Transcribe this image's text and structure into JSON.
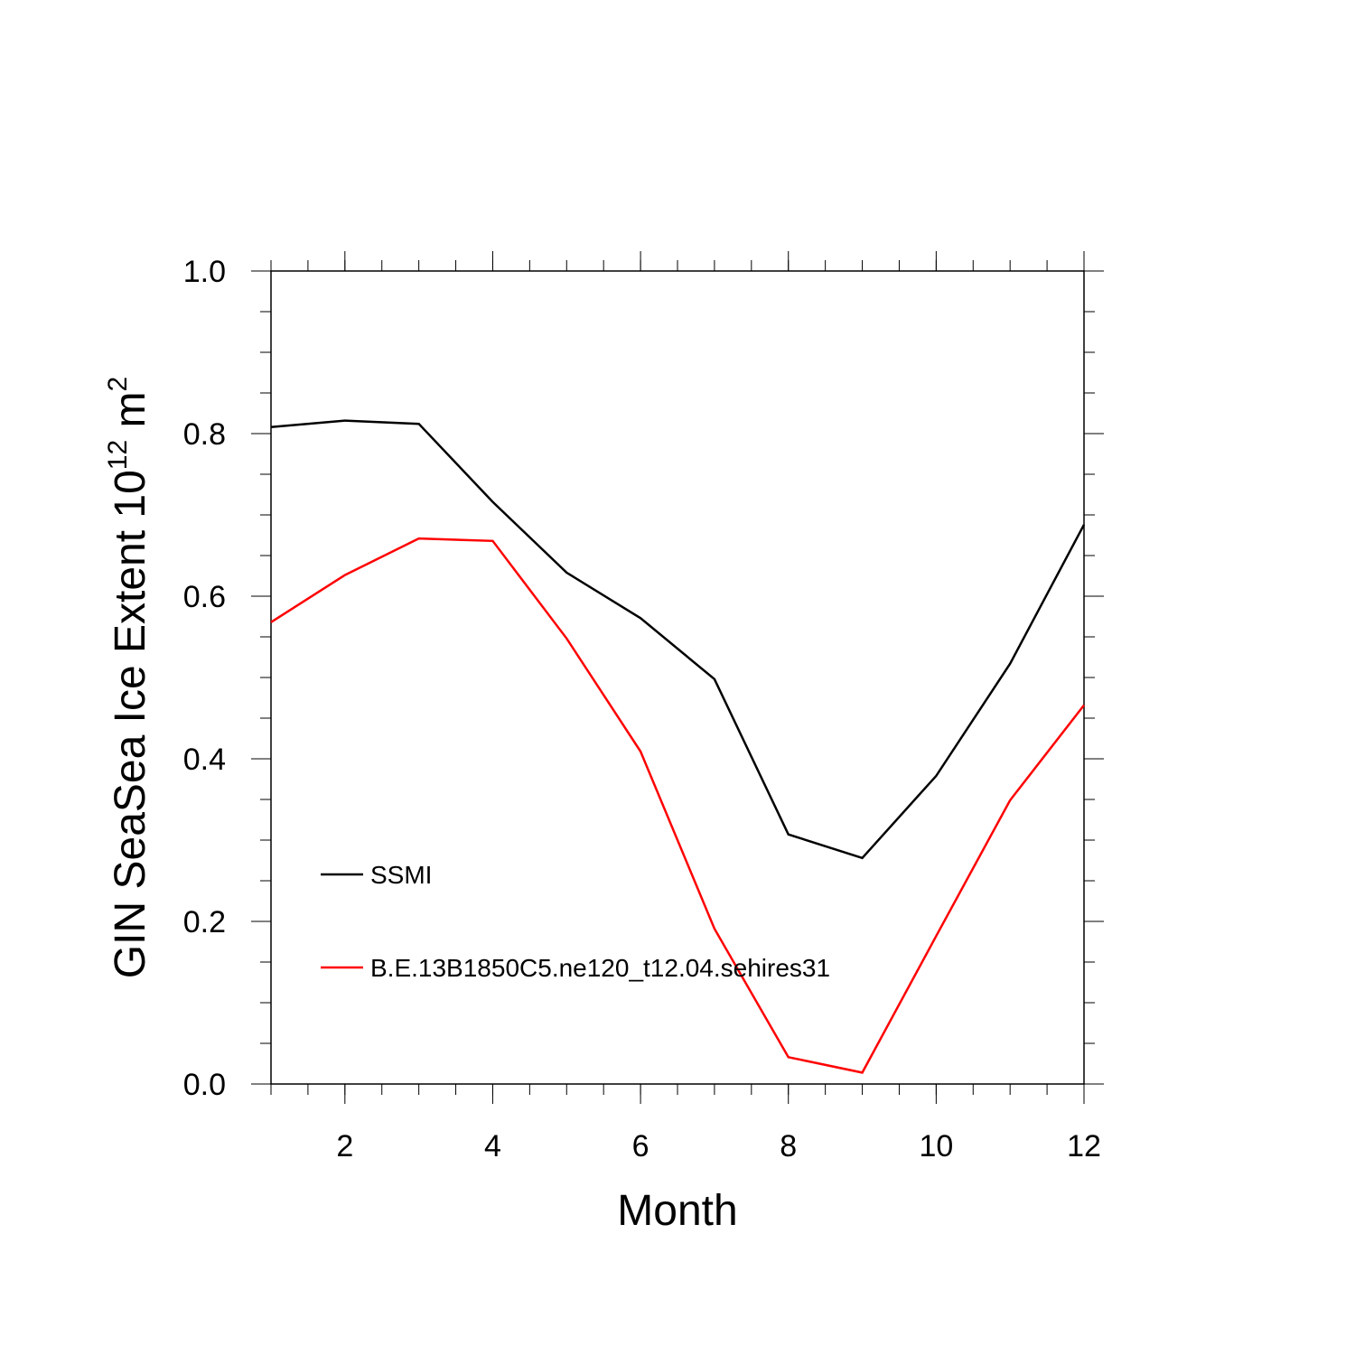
{
  "chart_data": {
    "type": "line",
    "xlabel": "Month",
    "ylabel": "GIN SeaSea Ice Extent 10",
    "ylabel_exponent": "12",
    "ylabel_unit": "m",
    "ylabel_unit_exponent": "2",
    "x": [
      1,
      2,
      3,
      4,
      5,
      6,
      7,
      8,
      9,
      10,
      11,
      12
    ],
    "series": [
      {
        "name": "SSMI",
        "color": "#000000",
        "values": [
          0.808,
          0.816,
          0.812,
          0.716,
          0.629,
          0.573,
          0.498,
          0.307,
          0.278,
          0.379,
          0.517,
          0.688
        ]
      },
      {
        "name": "B.E.13B1850C5.ne120_t12.04.sehires31",
        "color": "#ff0000",
        "values": [
          0.568,
          0.626,
          0.671,
          0.668,
          0.548,
          0.409,
          0.191,
          0.033,
          0.014,
          0.182,
          0.349,
          0.466
        ]
      }
    ],
    "xlim": [
      1,
      12
    ],
    "xticks": [
      2,
      4,
      6,
      8,
      10,
      12
    ],
    "ylim": [
      0,
      1
    ],
    "yticks": [
      {
        "value": 0,
        "label": "0.0"
      },
      {
        "value": 0.2,
        "label": "0.2"
      },
      {
        "value": 0.4,
        "label": "0.4"
      },
      {
        "value": 0.6,
        "label": "0.6"
      },
      {
        "value": 0.8,
        "label": "0.8"
      },
      {
        "value": 1,
        "label": "1.0"
      }
    ],
    "grid": false
  }
}
